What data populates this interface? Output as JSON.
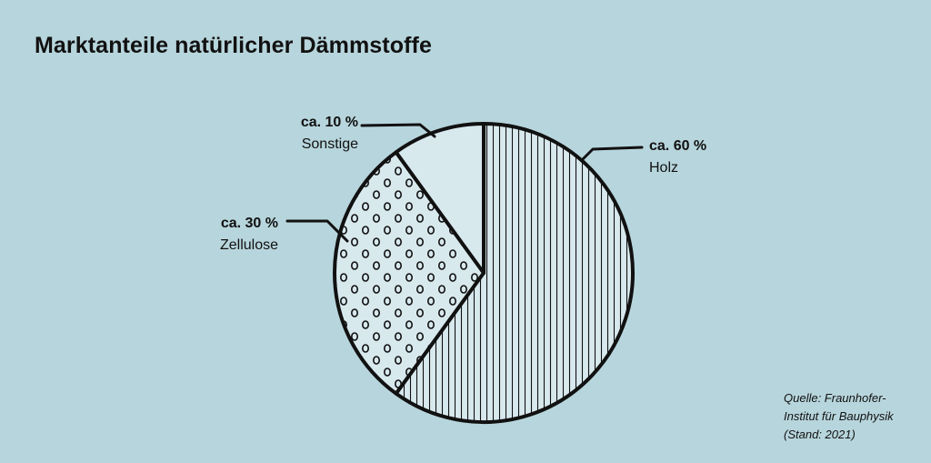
{
  "chart_data": {
    "type": "pie",
    "title": "Marktanteile natürlicher Dämmstoffe",
    "slices": [
      {
        "label": "Holz",
        "value_label": "ca. 60 %",
        "value": 60,
        "pattern": "vertical-lines"
      },
      {
        "label": "Zellulose",
        "value_label": "ca. 30 %",
        "value": 30,
        "pattern": "circles"
      },
      {
        "label": "Sonstige",
        "value_label": "ca. 10 %",
        "value": 10,
        "pattern": "none"
      }
    ]
  },
  "source": "Quelle: Fraunhofer-\nInstitut für Bauphysik\n(Stand: 2021)",
  "colors": {
    "background": "#b7d5dc",
    "ink": "#111111",
    "fill": "#d8e9ee"
  }
}
